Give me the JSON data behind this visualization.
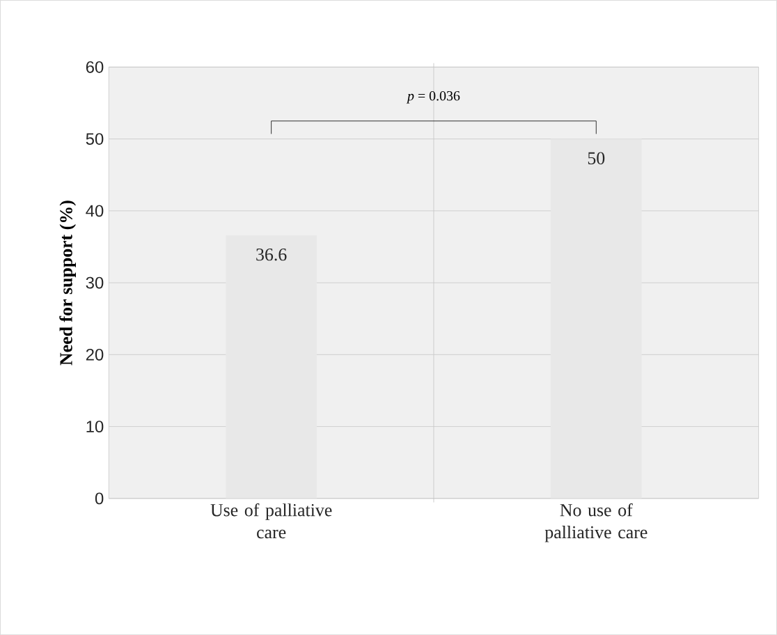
{
  "chart_data": {
    "type": "bar",
    "ylabel": "Need for support (%)",
    "categories": [
      "Use of palliative care",
      "No use of palliative care"
    ],
    "values": [
      36.6,
      50
    ],
    "color": "#e8e8e8",
    "data_labels": true,
    "ylim": [
      0,
      60
    ],
    "yticks": [
      0,
      10,
      20,
      30,
      40,
      50,
      60
    ],
    "grid": true,
    "annotations": [
      "*p* = 0.036"
    ]
  }
}
